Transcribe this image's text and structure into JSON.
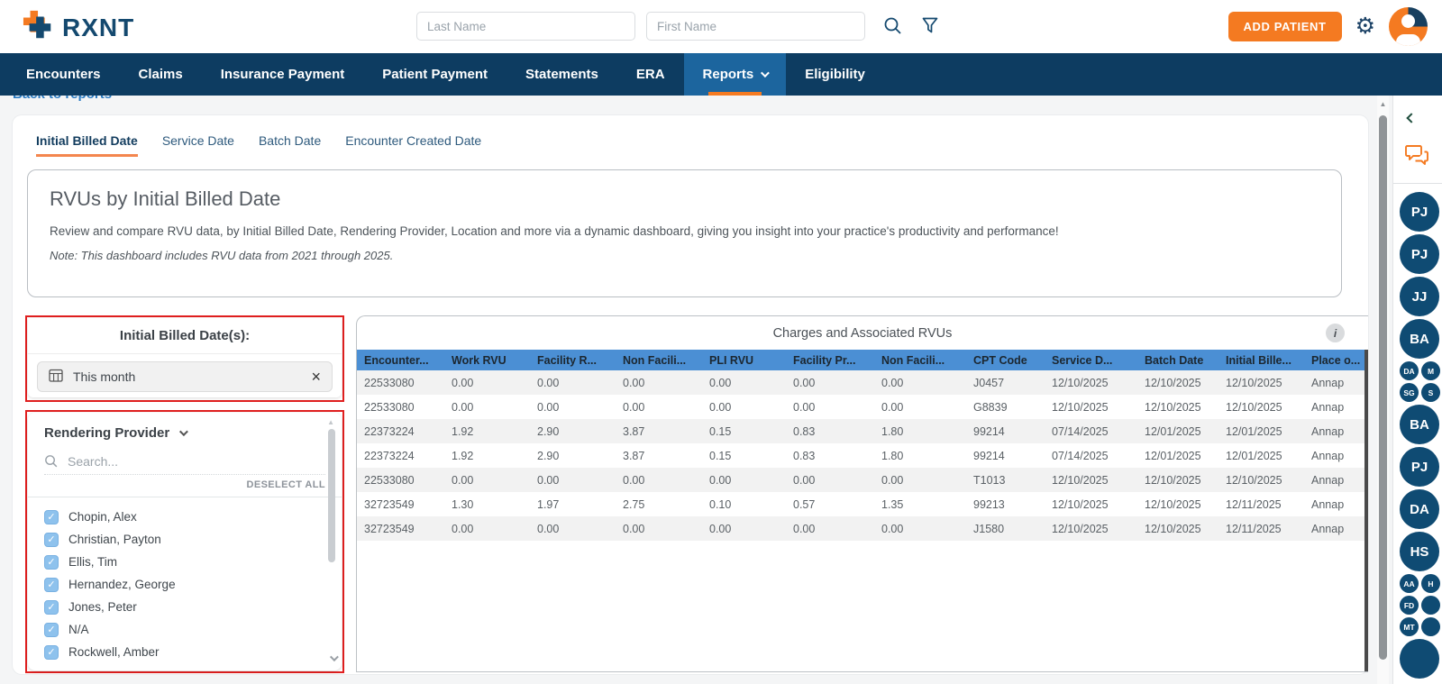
{
  "header": {
    "logo_text": "RXNT",
    "last_name_placeholder": "Last Name",
    "first_name_placeholder": "First Name",
    "add_patient_label": "ADD PATIENT"
  },
  "nav": {
    "items": [
      {
        "label": "Encounters",
        "active": false,
        "dropdown": false
      },
      {
        "label": "Claims",
        "active": false,
        "dropdown": false
      },
      {
        "label": "Insurance Payment",
        "active": false,
        "dropdown": false
      },
      {
        "label": "Patient Payment",
        "active": false,
        "dropdown": false
      },
      {
        "label": "Statements",
        "active": false,
        "dropdown": false
      },
      {
        "label": "ERA",
        "active": false,
        "dropdown": false
      },
      {
        "label": "Reports",
        "active": true,
        "dropdown": true
      },
      {
        "label": "Eligibility",
        "active": false,
        "dropdown": false
      }
    ]
  },
  "back_link_label": "Back to reports",
  "tabs": [
    {
      "label": "Initial Billed Date",
      "active": true
    },
    {
      "label": "Service Date",
      "active": false
    },
    {
      "label": "Batch Date",
      "active": false
    },
    {
      "label": "Encounter Created Date",
      "active": false
    }
  ],
  "report": {
    "title": "RVUs by Initial Billed Date",
    "description": "Review and compare RVU data, by Initial Billed Date, Rendering Provider, Location and more via a dynamic dashboard, giving you insight into your practice's productivity and performance!",
    "note": "Note: This dashboard includes RVU data from 2021 through 2025."
  },
  "filters": {
    "date_section_label": "Initial Billed Date(s):",
    "date_chip_label": "This month",
    "provider_section_label": "Rendering Provider",
    "search_placeholder": "Search...",
    "deselect_all_label": "DESELECT ALL",
    "providers": [
      {
        "label": "Chopin, Alex",
        "checked": true
      },
      {
        "label": "Christian, Payton",
        "checked": true
      },
      {
        "label": "Ellis, Tim",
        "checked": true
      },
      {
        "label": "Hernandez, George",
        "checked": true
      },
      {
        "label": "Jones, Peter",
        "checked": true
      },
      {
        "label": "N/A",
        "checked": true
      },
      {
        "label": "Rockwell, Amber",
        "checked": true
      }
    ]
  },
  "table": {
    "title": "Charges and Associated RVUs",
    "info_icon_label": "i",
    "columns": [
      "Encounter...",
      "Work RVU",
      "Facility R...",
      "Non Facili...",
      "PLI RVU",
      "Facility Pr...",
      "Non Facili...",
      "CPT Code",
      "Service D...",
      "Batch Date",
      "Initial Bille...",
      "Place o..."
    ],
    "rows": [
      [
        "22533080",
        "0.00",
        "0.00",
        "0.00",
        "0.00",
        "0.00",
        "0.00",
        "J0457",
        "12/10/2025",
        "12/10/2025",
        "12/10/2025",
        "Annap"
      ],
      [
        "22533080",
        "0.00",
        "0.00",
        "0.00",
        "0.00",
        "0.00",
        "0.00",
        "G8839",
        "12/10/2025",
        "12/10/2025",
        "12/10/2025",
        "Annap"
      ],
      [
        "22373224",
        "1.92",
        "2.90",
        "3.87",
        "0.15",
        "0.83",
        "1.80",
        "99214",
        "07/14/2025",
        "12/01/2025",
        "12/01/2025",
        "Annap"
      ],
      [
        "22373224",
        "1.92",
        "2.90",
        "3.87",
        "0.15",
        "0.83",
        "1.80",
        "99214",
        "07/14/2025",
        "12/01/2025",
        "12/01/2025",
        "Annap"
      ],
      [
        "22533080",
        "0.00",
        "0.00",
        "0.00",
        "0.00",
        "0.00",
        "0.00",
        "T1013",
        "12/10/2025",
        "12/10/2025",
        "12/10/2025",
        "Annap"
      ],
      [
        "32723549",
        "1.30",
        "1.97",
        "2.75",
        "0.10",
        "0.57",
        "1.35",
        "99213",
        "12/10/2025",
        "12/10/2025",
        "12/11/2025",
        "Annap"
      ],
      [
        "32723549",
        "0.00",
        "0.00",
        "0.00",
        "0.00",
        "0.00",
        "0.00",
        "J1580",
        "12/10/2025",
        "12/10/2025",
        "12/11/2025",
        "Annap"
      ]
    ]
  },
  "sidebar": {
    "avatars": [
      {
        "label": "PJ",
        "size": "lg"
      },
      {
        "label": "PJ",
        "size": "lg"
      },
      {
        "label": "JJ",
        "size": "lg"
      },
      {
        "label": "BA",
        "size": "lg"
      },
      {
        "label": "DA",
        "size": "sm"
      },
      {
        "label": "M",
        "size": "sm"
      },
      {
        "label": "SG",
        "size": "sm"
      },
      {
        "label": "S",
        "size": "sm"
      },
      {
        "label": "BA",
        "size": "lg"
      },
      {
        "label": "PJ",
        "size": "lg"
      },
      {
        "label": "DA",
        "size": "lg"
      },
      {
        "label": "HS",
        "size": "lg"
      },
      {
        "label": "AA",
        "size": "sm"
      },
      {
        "label": "H",
        "size": "sm"
      },
      {
        "label": "FD",
        "size": "sm"
      },
      {
        "label": "",
        "size": "sm"
      },
      {
        "label": "MT",
        "size": "sm"
      },
      {
        "label": "",
        "size": "sm"
      },
      {
        "label": "",
        "size": "lg"
      }
    ]
  },
  "colors": {
    "brand_navy": "#0d3c61",
    "brand_orange": "#f47a21",
    "nav_active_blue": "#1c659e",
    "table_header_blue": "#4b8fd4",
    "annotation_red": "#e01f1f",
    "link_blue": "#2c7cc3",
    "checkbox_blue": "#8ec2ed",
    "avatar_navy": "#0f4b73"
  }
}
